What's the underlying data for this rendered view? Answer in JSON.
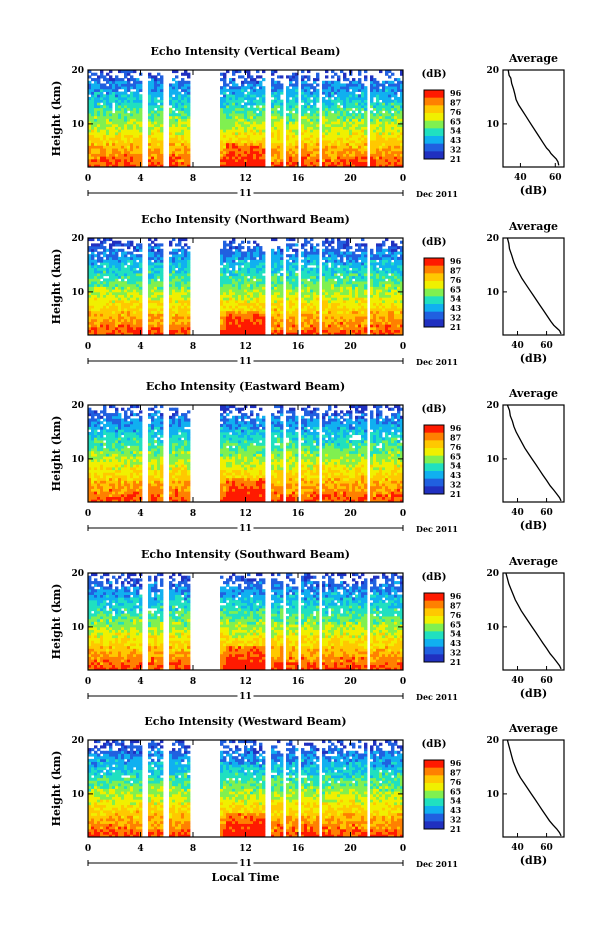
{
  "chart_data": [
    {
      "type": "heatmap",
      "title": "Echo Intensity (Vertical Beam)",
      "ylabel": "Height (km)",
      "yticks": [
        "10",
        "20"
      ],
      "xticks": [
        "0",
        "4",
        "8",
        "12",
        "16",
        "20",
        "0"
      ],
      "xlim": [
        0,
        24
      ],
      "ylim": [
        2,
        20
      ],
      "day_label": "11",
      "date_label": "Dec 2011",
      "colorbar_unit": "(dB)",
      "colorbar_ticks": [
        "96",
        "87",
        "76",
        "65",
        "54",
        "43",
        "32",
        "21"
      ],
      "profile": {
        "title": "Average",
        "xlabel": "(dB)",
        "xticks": [
          "40",
          "60"
        ],
        "yticks": [
          "10",
          "20"
        ],
        "xlim": [
          30,
          65
        ],
        "x": [
          33,
          33.5,
          34.5,
          35,
          36,
          36.8,
          37.5,
          39,
          41,
          43,
          45,
          47,
          49,
          51,
          53,
          55,
          56.5,
          57.5,
          59,
          60.5,
          61.5,
          62
        ],
        "y": [
          20,
          19,
          18.5,
          17.5,
          16.5,
          15.5,
          14.5,
          13.5,
          12.5,
          11.5,
          10.5,
          9.5,
          8.5,
          7.5,
          6.5,
          5.5,
          5,
          4.5,
          4,
          3.5,
          3,
          2.3
        ]
      }
    },
    {
      "type": "heatmap",
      "title": "Echo Intensity (Northward Beam)",
      "ylabel": "Height (km)",
      "yticks": [
        "10",
        "20"
      ],
      "xticks": [
        "0",
        "4",
        "8",
        "12",
        "16",
        "20",
        "0"
      ],
      "xlim": [
        0,
        24
      ],
      "ylim": [
        2,
        20
      ],
      "day_label": "11",
      "date_label": "Dec 2011",
      "colorbar_unit": "(dB)",
      "colorbar_ticks": [
        "96",
        "87",
        "76",
        "65",
        "54",
        "43",
        "32",
        "21"
      ],
      "profile": {
        "title": "Average",
        "xlabel": "(dB)",
        "xticks": [
          "40",
          "60"
        ],
        "yticks": [
          "10",
          "20"
        ],
        "xlim": [
          30,
          72
        ],
        "x": [
          33,
          34,
          34.5,
          36,
          37.5,
          39,
          41,
          43,
          45.5,
          48,
          50.5,
          53,
          55.5,
          58,
          60.5,
          63,
          65,
          67,
          69,
          70
        ],
        "y": [
          20,
          19,
          18,
          16.8,
          15.5,
          14.5,
          13.5,
          12.5,
          11.5,
          10.5,
          9.5,
          8.5,
          7.5,
          6.5,
          5.5,
          4.5,
          3.8,
          3.3,
          2.8,
          2.2
        ]
      }
    },
    {
      "type": "heatmap",
      "title": "Echo Intensity (Eastward Beam)",
      "ylabel": "Height (km)",
      "yticks": [
        "10",
        "20"
      ],
      "xticks": [
        "0",
        "4",
        "8",
        "12",
        "16",
        "20",
        "0"
      ],
      "xlim": [
        0,
        24
      ],
      "ylim": [
        2,
        20
      ],
      "day_label": "11",
      "date_label": "Dec 2011",
      "colorbar_unit": "(dB)",
      "colorbar_ticks": [
        "96",
        "87",
        "76",
        "65",
        "54",
        "43",
        "32",
        "21"
      ],
      "profile": {
        "title": "Average",
        "xlabel": "(dB)",
        "xticks": [
          "40",
          "60"
        ],
        "yticks": [
          "10",
          "20"
        ],
        "xlim": [
          30,
          72
        ],
        "x": [
          33,
          34.5,
          35,
          36.5,
          37.5,
          39,
          41,
          43,
          45,
          47.5,
          50,
          52.5,
          55,
          57.5,
          60,
          62.5,
          65,
          67,
          69,
          70
        ],
        "y": [
          20,
          19,
          18,
          17,
          16,
          15,
          14,
          13,
          12,
          11,
          10,
          9,
          8,
          7,
          6,
          5,
          4.2,
          3.5,
          2.8,
          2.2
        ]
      }
    },
    {
      "type": "heatmap",
      "title": "Echo Intensity (Southward Beam)",
      "ylabel": "Height (km)",
      "yticks": [
        "10",
        "20"
      ],
      "xticks": [
        "0",
        "4",
        "8",
        "12",
        "16",
        "20",
        "0"
      ],
      "xlim": [
        0,
        24
      ],
      "ylim": [
        2,
        20
      ],
      "day_label": "11",
      "date_label": "Dec 2011",
      "colorbar_unit": "(dB)",
      "colorbar_ticks": [
        "96",
        "87",
        "76",
        "65",
        "54",
        "43",
        "32",
        "21"
      ],
      "profile": {
        "title": "Average",
        "xlabel": "(dB)",
        "xticks": [
          "40",
          "60"
        ],
        "yticks": [
          "10",
          "20"
        ],
        "xlim": [
          30,
          72
        ],
        "x": [
          32,
          33,
          34,
          35.5,
          37,
          38.5,
          40.5,
          42.5,
          45,
          47.5,
          50,
          52.5,
          55,
          57.5,
          60,
          62.5,
          65,
          67,
          69,
          70
        ],
        "y": [
          20,
          19,
          18,
          17,
          16,
          15,
          14,
          13,
          12,
          11,
          10,
          9,
          8,
          7,
          6,
          5,
          4.2,
          3.5,
          2.8,
          2.2
        ]
      }
    },
    {
      "type": "heatmap",
      "title": "Echo Intensity (Westward Beam)",
      "ylabel": "Height (km)",
      "yticks": [
        "10",
        "20"
      ],
      "xticks": [
        "0",
        "4",
        "8",
        "12",
        "16",
        "20",
        "0"
      ],
      "xlim": [
        0,
        24
      ],
      "ylim": [
        2,
        20
      ],
      "day_label": "11",
      "date_label": "Dec 2011",
      "xlabel": "Local Time",
      "colorbar_unit": "(dB)",
      "colorbar_ticks": [
        "96",
        "87",
        "76",
        "65",
        "54",
        "43",
        "32",
        "21"
      ],
      "profile": {
        "title": "Average",
        "xlabel": "(dB)",
        "xticks": [
          "40",
          "60"
        ],
        "yticks": [
          "10",
          "20"
        ],
        "xlim": [
          30,
          72
        ],
        "x": [
          33,
          34,
          35,
          36,
          37,
          38.5,
          40,
          42,
          44.5,
          47,
          49.5,
          52,
          54.5,
          57,
          59.5,
          62,
          64.5,
          67,
          69,
          70
        ],
        "y": [
          20,
          19,
          18,
          17,
          16,
          15,
          14,
          13,
          12,
          11,
          10,
          9,
          8,
          7,
          6,
          5,
          4.2,
          3.5,
          2.8,
          2.2
        ]
      }
    }
  ],
  "colorscale": [
    "#ff1a00",
    "#ff8000",
    "#ffc800",
    "#f0f000",
    "#80f050",
    "#20e0c0",
    "#10b0f0",
    "#2060e0",
    "#2030c0"
  ]
}
